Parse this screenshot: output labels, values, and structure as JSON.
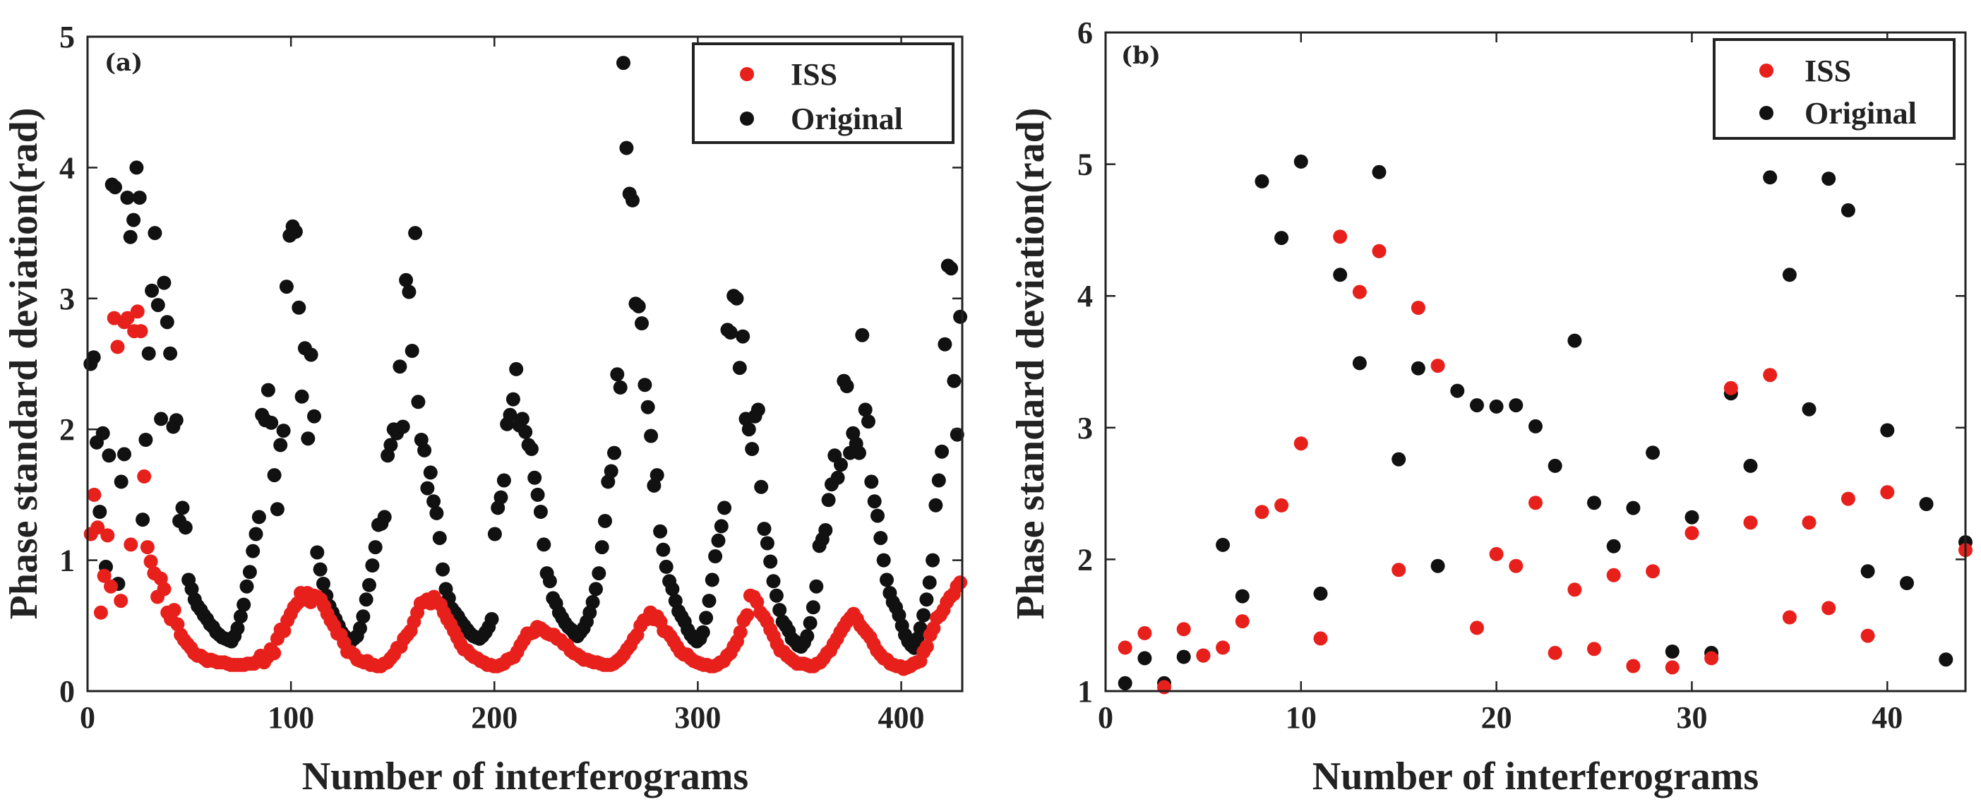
{
  "chart_data": [
    {
      "type": "scatter",
      "panel_label": "(a)",
      "xlabel": "Number of interferograms",
      "ylabel": "Phase standard deviation(rad)",
      "xlim": [
        0,
        430
      ],
      "ylim": [
        0,
        5
      ],
      "xticks": [
        0,
        100,
        200,
        300,
        400
      ],
      "yticks": [
        0,
        1,
        2,
        3,
        4,
        5
      ],
      "legend_position": "top-right",
      "series": [
        {
          "name": "ISS",
          "color": "#e8201c",
          "values": [
            1.2,
            1.5,
            1.25,
            0.6,
            0.88,
            1.19,
            0.8,
            2.85,
            2.63,
            0.69,
            2.82,
            2.85,
            1.12,
            2.75,
            2.9,
            2.75,
            1.64,
            1.1,
            0.99,
            0.9,
            0.72,
            0.86,
            0.78,
            0.6,
            0.55,
            0.62,
            0.51,
            0.43,
            0.39,
            0.36,
            0.33,
            0.29,
            0.27,
            0.27,
            0.25,
            0.23,
            0.24,
            0.23,
            0.22,
            0.22,
            0.22,
            0.21,
            0.2,
            0.2,
            0.2,
            0.2,
            0.2,
            0.21,
            0.21,
            0.21,
            0.23,
            0.27,
            0.22,
            0.26,
            0.32,
            0.29,
            0.4,
            0.47,
            0.46,
            0.54,
            0.59,
            0.64,
            0.67,
            0.75,
            0.7,
            0.75,
            0.68,
            0.73,
            0.72,
            0.7,
            0.65,
            0.59,
            0.54,
            0.5,
            0.44,
            0.43,
            0.37,
            0.3,
            0.3,
            0.28,
            0.24,
            0.23,
            0.22,
            0.23,
            0.2,
            0.2,
            0.19,
            0.19,
            0.21,
            0.22,
            0.25,
            0.28,
            0.33,
            0.34,
            0.4,
            0.43,
            0.46,
            0.53,
            0.6,
            0.67,
            0.68,
            0.7,
            0.67,
            0.72,
            0.68,
            0.66,
            0.6,
            0.55,
            0.51,
            0.46,
            0.41,
            0.36,
            0.32,
            0.31,
            0.28,
            0.26,
            0.25,
            0.23,
            0.22,
            0.2,
            0.2,
            0.19,
            0.19,
            0.2,
            0.21,
            0.24,
            0.25,
            0.26,
            0.3,
            0.35,
            0.39,
            0.44,
            0.44,
            0.45,
            0.49,
            0.48,
            0.46,
            0.44,
            0.43,
            0.43,
            0.4,
            0.39,
            0.36,
            0.35,
            0.31,
            0.29,
            0.28,
            0.26,
            0.24,
            0.24,
            0.23,
            0.22,
            0.22,
            0.21,
            0.2,
            0.2,
            0.2,
            0.21,
            0.23,
            0.25,
            0.28,
            0.32,
            0.35,
            0.4,
            0.43,
            0.5,
            0.54,
            0.55,
            0.6,
            0.55,
            0.57,
            0.53,
            0.46,
            0.45,
            0.42,
            0.38,
            0.34,
            0.3,
            0.28,
            0.28,
            0.25,
            0.23,
            0.22,
            0.21,
            0.2,
            0.2,
            0.19,
            0.19,
            0.2,
            0.22,
            0.23,
            0.27,
            0.29,
            0.34,
            0.38,
            0.45,
            0.54,
            0.58,
            0.73,
            0.72,
            0.68,
            0.6,
            0.57,
            0.53,
            0.47,
            0.42,
            0.36,
            0.31,
            0.3,
            0.27,
            0.25,
            0.23,
            0.21,
            0.21,
            0.21,
            0.2,
            0.19,
            0.19,
            0.21,
            0.22,
            0.25,
            0.29,
            0.31,
            0.36,
            0.4,
            0.45,
            0.49,
            0.53,
            0.56,
            0.59,
            0.55,
            0.5,
            0.47,
            0.44,
            0.41,
            0.36,
            0.31,
            0.28,
            0.25,
            0.24,
            0.21,
            0.2,
            0.19,
            0.19,
            0.17,
            0.18,
            0.19,
            0.21,
            0.22,
            0.23,
            0.3,
            0.34,
            0.43,
            0.48,
            0.56,
            0.58,
            0.62,
            0.68,
            0.72,
            0.74,
            0.8,
            0.83
          ]
        },
        {
          "name": "Original",
          "color": "#111111",
          "values": [
            2.5,
            2.55,
            1.9,
            1.37,
            1.97,
            0.95,
            1.8,
            3.87,
            3.85,
            0.82,
            1.6,
            1.81,
            3.77,
            3.47,
            3.6,
            4.0,
            3.77,
            1.31,
            1.92,
            2.58,
            3.06,
            3.5,
            2.95,
            2.08,
            3.12,
            2.82,
            2.58,
            2.02,
            2.07,
            1.3,
            1.4,
            1.25,
            0.85,
            0.78,
            0.7,
            0.65,
            0.62,
            0.58,
            0.55,
            0.51,
            0.49,
            0.45,
            0.43,
            0.41,
            0.4,
            0.39,
            0.38,
            0.42,
            0.48,
            0.57,
            0.66,
            0.8,
            0.91,
            1.07,
            1.2,
            1.33,
            2.11,
            2.07,
            2.3,
            2.05,
            1.65,
            1.39,
            1.88,
            1.99,
            3.09,
            3.48,
            3.55,
            3.51,
            2.93,
            2.25,
            2.62,
            1.93,
            2.57,
            2.1,
            1.06,
            0.93,
            0.82,
            0.73,
            0.65,
            0.6,
            0.55,
            0.5,
            0.45,
            0.42,
            0.4,
            0.38,
            0.4,
            0.42,
            0.48,
            0.57,
            0.7,
            0.81,
            0.96,
            1.1,
            1.27,
            1.28,
            1.33,
            1.8,
            1.88,
            2.0,
            1.97,
            2.48,
            2.02,
            3.14,
            3.05,
            2.6,
            3.5,
            2.21,
            1.92,
            1.84,
            1.55,
            1.67,
            1.45,
            1.36,
            1.17,
            0.93,
            0.78,
            0.71,
            0.63,
            0.6,
            0.57,
            0.53,
            0.5,
            0.47,
            0.44,
            0.42,
            0.41,
            0.4,
            0.42,
            0.45,
            0.49,
            0.55,
            1.2,
            1.4,
            1.48,
            1.61,
            2.04,
            2.11,
            2.23,
            2.46,
            2.03,
            2.08,
            1.98,
            1.88,
            1.85,
            1.63,
            1.5,
            1.37,
            1.12,
            0.9,
            0.84,
            0.71,
            0.67,
            0.6,
            0.56,
            0.52,
            0.49,
            0.47,
            0.44,
            0.42,
            0.45,
            0.48,
            0.53,
            0.6,
            0.68,
            0.78,
            0.9,
            1.1,
            1.3,
            1.6,
            1.68,
            1.82,
            2.42,
            2.32,
            4.8,
            4.15,
            3.8,
            3.75,
            2.96,
            2.94,
            2.81,
            2.34,
            2.17,
            1.95,
            1.57,
            1.65,
            1.22,
            1.08,
            0.95,
            0.84,
            0.78,
            0.69,
            0.61,
            0.57,
            0.53,
            0.47,
            0.43,
            0.4,
            0.38,
            0.4,
            0.45,
            0.56,
            0.69,
            0.85,
            1.03,
            1.15,
            1.26,
            1.4,
            2.76,
            2.74,
            3.02,
            3.0,
            2.47,
            2.71,
            2.08,
            2.0,
            1.85,
            2.1,
            2.15,
            1.56,
            1.24,
            1.13,
            0.99,
            0.84,
            0.73,
            0.62,
            0.53,
            0.5,
            0.46,
            0.4,
            0.38,
            0.35,
            0.34,
            0.37,
            0.42,
            0.52,
            0.64,
            0.8,
            1.11,
            1.16,
            1.23,
            1.46,
            1.58,
            1.8,
            1.63,
            1.73,
            2.37,
            2.33,
            1.82,
            1.97,
            1.89,
            1.82,
            2.72,
            2.15,
            2.06,
            1.6,
            1.45,
            1.34,
            1.17,
            1.0,
            0.85,
            0.75,
            0.68,
            0.64,
            0.58,
            0.5,
            0.43,
            0.38,
            0.35,
            0.33,
            0.4,
            0.48,
            0.58,
            0.7,
            0.83,
            1.0,
            1.42,
            1.61,
            1.83,
            2.65,
            3.25,
            3.23,
            2.37,
            1.96,
            2.86
          ]
        }
      ]
    },
    {
      "type": "scatter",
      "panel_label": "(b)",
      "xlabel": "Number of interferograms",
      "ylabel": "Phase standard deviation(rad)",
      "xlim": [
        0,
        44
      ],
      "ylim": [
        1,
        6
      ],
      "xticks": [
        0,
        10,
        20,
        30,
        40
      ],
      "yticks": [
        1,
        2,
        3,
        4,
        5,
        6
      ],
      "legend_position": "top-right",
      "series": [
        {
          "name": "ISS",
          "color": "#e8201c",
          "x": [
            1,
            2,
            3,
            4,
            5,
            6,
            7,
            8,
            9,
            10,
            11,
            12,
            13,
            14,
            15,
            16,
            17,
            19,
            20,
            21,
            22,
            23,
            24,
            25,
            26,
            27,
            28,
            29,
            30,
            31,
            32,
            33,
            34,
            35,
            36,
            37,
            38,
            39,
            40,
            44
          ],
          "y": [
            1.33,
            1.44,
            1.03,
            1.47,
            1.27,
            1.33,
            1.53,
            2.36,
            2.41,
            2.88,
            1.4,
            4.45,
            4.03,
            4.34,
            1.92,
            3.91,
            3.47,
            1.48,
            2.04,
            1.95,
            2.43,
            1.29,
            1.77,
            1.32,
            1.88,
            1.19,
            1.91,
            1.18,
            2.2,
            1.25,
            3.3,
            2.28,
            3.4,
            1.56,
            2.28,
            1.63,
            2.46,
            1.42,
            2.51,
            2.07
          ]
        },
        {
          "name": "Original",
          "color": "#111111",
          "x": [
            1,
            2,
            3,
            4,
            5,
            6,
            7,
            8,
            9,
            10,
            11,
            12,
            13,
            14,
            15,
            16,
            17,
            18,
            19,
            20,
            21,
            22,
            23,
            24,
            25,
            26,
            27,
            28,
            29,
            30,
            31,
            32,
            33,
            34,
            35,
            36,
            37,
            38,
            39,
            40,
            41,
            42,
            43,
            44
          ],
          "y": [
            1.06,
            1.25,
            1.06,
            1.26,
            1.27,
            2.11,
            1.72,
            4.87,
            4.44,
            5.02,
            1.74,
            4.16,
            3.49,
            4.94,
            2.76,
            3.45,
            1.95,
            3.28,
            3.17,
            3.16,
            3.17,
            3.01,
            2.71,
            3.66,
            2.43,
            2.1,
            2.39,
            2.81,
            1.3,
            2.32,
            1.29,
            3.26,
            2.71,
            4.9,
            4.16,
            3.14,
            4.89,
            4.65,
            1.91,
            2.98,
            1.82,
            2.42,
            1.24,
            2.13
          ]
        }
      ]
    }
  ]
}
